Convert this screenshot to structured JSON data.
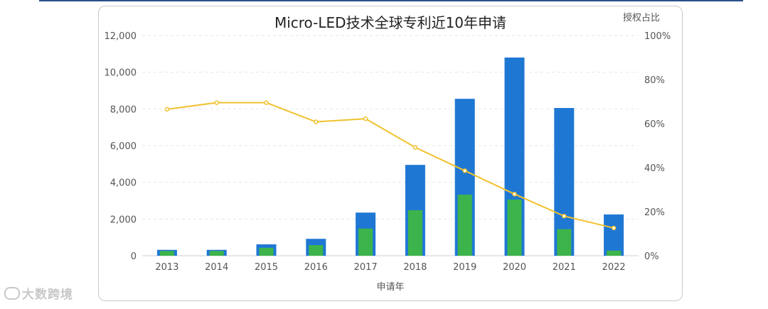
{
  "chart_data": {
    "type": "bar",
    "title": "Micro-LED技术全球专利近10年申请",
    "xlabel": "申请年",
    "y2label": "授权占比",
    "categories": [
      "2013",
      "2014",
      "2015",
      "2016",
      "2017",
      "2018",
      "2019",
      "2020",
      "2021",
      "2022"
    ],
    "ylim": [
      0,
      12000
    ],
    "yticks": [
      "0",
      "2,000",
      "4,000",
      "6,000",
      "8,000",
      "10,000",
      "12,000"
    ],
    "y2lim": [
      0,
      100
    ],
    "y2ticks": [
      "0%",
      "20%",
      "40%",
      "60%",
      "80%",
      "100%"
    ],
    "grid": true,
    "series": [
      {
        "type": "bar",
        "color": "#1f77d4",
        "values": [
          320,
          320,
          620,
          920,
          2350,
          4950,
          8550,
          10800,
          8050,
          2250
        ]
      },
      {
        "type": "bar",
        "color": "#3cb44b",
        "values": [
          260,
          260,
          430,
          580,
          1480,
          2480,
          3330,
          3060,
          1450,
          280
        ]
      },
      {
        "type": "line",
        "axis": "right",
        "color": "#f2c12e",
        "values": [
          66.5,
          69.5,
          69.5,
          60.8,
          62.2,
          49.2,
          38.6,
          28.0,
          18.0,
          12.6
        ]
      }
    ]
  },
  "watermark": {
    "text": "大数跨境"
  }
}
